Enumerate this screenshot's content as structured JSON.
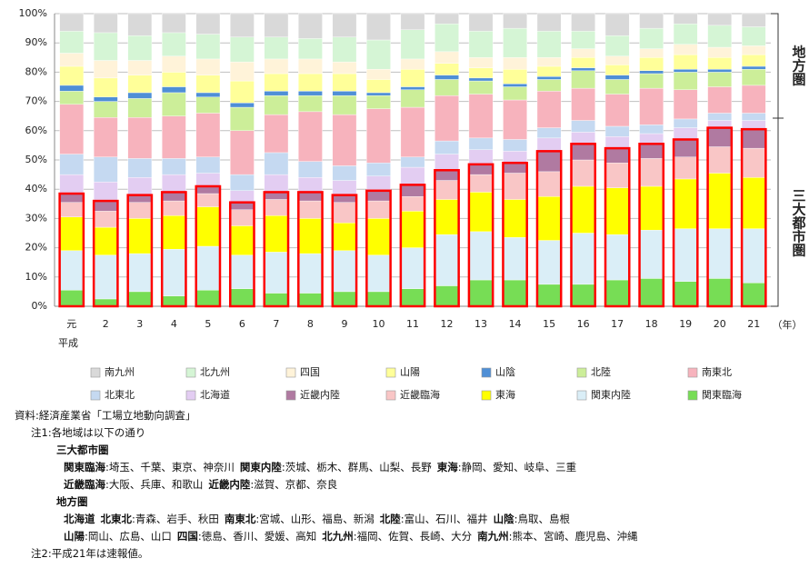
{
  "chart_data": {
    "type": "bar",
    "stacking": "stacked",
    "categories": [
      "元",
      "2",
      "3",
      "4",
      "5",
      "6",
      "7",
      "8",
      "9",
      "10",
      "11",
      "12",
      "13",
      "14",
      "15",
      "16",
      "17",
      "18",
      "19",
      "20",
      "21"
    ],
    "era_label": "平成",
    "x_unit": "（年）",
    "ylim": [
      0,
      100
    ],
    "yticks": [
      {
        "value": 0,
        "label": "0%"
      },
      {
        "value": 10,
        "label": "10%"
      },
      {
        "value": 20,
        "label": "20%"
      },
      {
        "value": 30,
        "label": "30%"
      },
      {
        "value": 40,
        "label": "40%"
      },
      {
        "value": 50,
        "label": "50%"
      },
      {
        "value": 60,
        "label": "60%"
      },
      {
        "value": 70,
        "label": "70%"
      },
      {
        "value": 80,
        "label": "80%"
      },
      {
        "value": 90,
        "label": "90%"
      },
      {
        "value": 100,
        "label": "100%"
      }
    ],
    "grid": true,
    "groups": [
      {
        "label": "地方圏"
      },
      {
        "label": "三大都市圏",
        "outline": "#ff0000"
      }
    ],
    "series": [
      {
        "name": "南九州",
        "color": "#d9d9d9",
        "group": "地方圏",
        "values": [
          6,
          6.5,
          7.5,
          6.5,
          7,
          8,
          8,
          8.5,
          8,
          9,
          5.5,
          3.5,
          6,
          5,
          6,
          6,
          7.5,
          5,
          3.5,
          4,
          4.5
        ]
      },
      {
        "name": "北九州",
        "color": "#d5f5d5",
        "group": "地方圏",
        "values": [
          7.5,
          9.5,
          8.5,
          8,
          8.5,
          8.5,
          7.5,
          7,
          8.5,
          10,
          10,
          9.5,
          9,
          10,
          9,
          6,
          7,
          7,
          7,
          7.5,
          6.5
        ]
      },
      {
        "name": "四国",
        "color": "#fff3d9",
        "group": "地方圏",
        "values": [
          4.5,
          6,
          5,
          5.5,
          5.5,
          6.5,
          5,
          5,
          4,
          3.5,
          3.5,
          4,
          3.5,
          4,
          3,
          3,
          3,
          3,
          3.5,
          3.5,
          3
        ]
      },
      {
        "name": "山陽",
        "color": "#ffff99",
        "group": "地方圏",
        "values": [
          6.5,
          6.5,
          6,
          5,
          6,
          7.5,
          6,
          6,
          6,
          4.5,
          6,
          4,
          3.5,
          5,
          3.5,
          3.5,
          3.5,
          4.5,
          5,
          4,
          4
        ]
      },
      {
        "name": "山陰",
        "color": "#4f8fd6",
        "group": "地方圏",
        "values": [
          2,
          1.5,
          2,
          2,
          1.5,
          1.5,
          1.5,
          1.5,
          1.5,
          1,
          1,
          1.5,
          1,
          1,
          1,
          1,
          1.5,
          1,
          1,
          1,
          1
        ]
      },
      {
        "name": "北陸",
        "color": "#ccee99",
        "group": "地方圏",
        "values": [
          4.5,
          5.5,
          6.5,
          8,
          5.5,
          8,
          6.5,
          5.5,
          6.5,
          4.5,
          6,
          5.5,
          4.5,
          4.5,
          4,
          6,
          5,
          5,
          6,
          5,
          5.5
        ]
      },
      {
        "name": "南東北",
        "color": "#f7b3bd",
        "group": "地方圏",
        "values": [
          17,
          13.5,
          14,
          14.5,
          15,
          15,
          13,
          17,
          17.5,
          18.5,
          17,
          15.5,
          15,
          13.5,
          12.5,
          11,
          11,
          12.5,
          10,
          9,
          9.5
        ]
      },
      {
        "name": "北東北",
        "color": "#c5d9f1",
        "group": "地方圏",
        "values": [
          7,
          8.5,
          6.5,
          5.5,
          5.5,
          5.5,
          7.5,
          5.5,
          5,
          4.5,
          3.5,
          4.5,
          4,
          4,
          3.5,
          4,
          3.5,
          3,
          3,
          2.5,
          2.5
        ]
      },
      {
        "name": "北海道",
        "color": "#e3cdf2",
        "group": "地方圏",
        "values": [
          6.5,
          6.5,
          6,
          6,
          4.5,
          4,
          6,
          5,
          5,
          5,
          6,
          5.5,
          5,
          4,
          4.5,
          4,
          4,
          3.5,
          4,
          2.5,
          3
        ]
      },
      {
        "name": "近畿内陸",
        "color": "#b07aa1",
        "group": "三大都市圏",
        "values": [
          3,
          3.5,
          2.5,
          3,
          2.5,
          2.5,
          2.5,
          3,
          2.5,
          3.5,
          4,
          3.5,
          3.5,
          3.5,
          7,
          5.5,
          5,
          5,
          6,
          6.5,
          6.5
        ]
      },
      {
        "name": "近畿臨海",
        "color": "#f9c6c6",
        "group": "三大都市圏",
        "values": [
          5,
          5.5,
          5.5,
          5,
          4.5,
          5.5,
          5.5,
          6,
          7,
          6,
          5,
          6.5,
          6,
          9,
          8.5,
          9,
          8.5,
          9.5,
          7.5,
          9,
          10
        ]
      },
      {
        "name": "東海",
        "color": "#ffff00",
        "group": "三大都市圏",
        "values": [
          11.5,
          9.5,
          12,
          11.5,
          13.5,
          10,
          12.5,
          12,
          9.5,
          12.5,
          12.5,
          12,
          13.5,
          13,
          15,
          16,
          16,
          15,
          17,
          19,
          17.5
        ]
      },
      {
        "name": "関東内陸",
        "color": "#daeef7",
        "group": "三大都市圏",
        "values": [
          13.5,
          15,
          13,
          16,
          15,
          11.5,
          14,
          13.5,
          14,
          12.5,
          14,
          17.5,
          16.5,
          14.5,
          15,
          17.5,
          15.5,
          16.5,
          18,
          17,
          18.5
        ]
      },
      {
        "name": "関東臨海",
        "color": "#77dd55",
        "group": "三大都市圏",
        "values": [
          5.5,
          2.5,
          5,
          3.5,
          5.5,
          6,
          4.5,
          4.5,
          5,
          5,
          6,
          7,
          9,
          9,
          7.5,
          7.5,
          9,
          9.5,
          8.5,
          9.5,
          8
        ]
      }
    ]
  },
  "notes": {
    "source": "資料:経済産業省「工場立地動向調査」",
    "note1": "注1:各地域は以下の通り",
    "groups": [
      {
        "title": "三大都市圏",
        "lines": [
          [
            {
              "term": "関東臨海",
              "text": ":埼玉、千葉、東京、神奈川"
            },
            {
              "term": "関東内陸",
              "text": ":茨城、栃木、群馬、山梨、長野"
            },
            {
              "term": "東海",
              "text": ":静岡、愛知、岐阜、三重"
            }
          ],
          [
            {
              "term": "近畿臨海",
              "text": ":大阪、兵庫、和歌山"
            },
            {
              "term": "近畿内陸",
              "text": ":滋賀、京都、奈良"
            }
          ]
        ]
      },
      {
        "title": "地方圏",
        "lines": [
          [
            {
              "term": "北海道"
            },
            {
              "term": "北東北",
              "text": ":青森、岩手、秋田"
            },
            {
              "term": "南東北",
              "text": ":宮城、山形、福島、新潟"
            },
            {
              "term": "北陸",
              "text": ":富山、石川、福井"
            },
            {
              "term": "山陰",
              "text": ":鳥取、島根"
            }
          ],
          [
            {
              "term": "山陽",
              "text": ":岡山、広島、山口"
            },
            {
              "term": "四国",
              "text": ":徳島、香川、愛媛、高知"
            },
            {
              "term": "北九州",
              "text": ":福岡、佐賀、長崎、大分"
            },
            {
              "term": "南九州",
              "text": ":熊本、宮崎、鹿児島、沖縄"
            }
          ]
        ]
      }
    ],
    "note2": "注2:平成21年は速報値。"
  }
}
